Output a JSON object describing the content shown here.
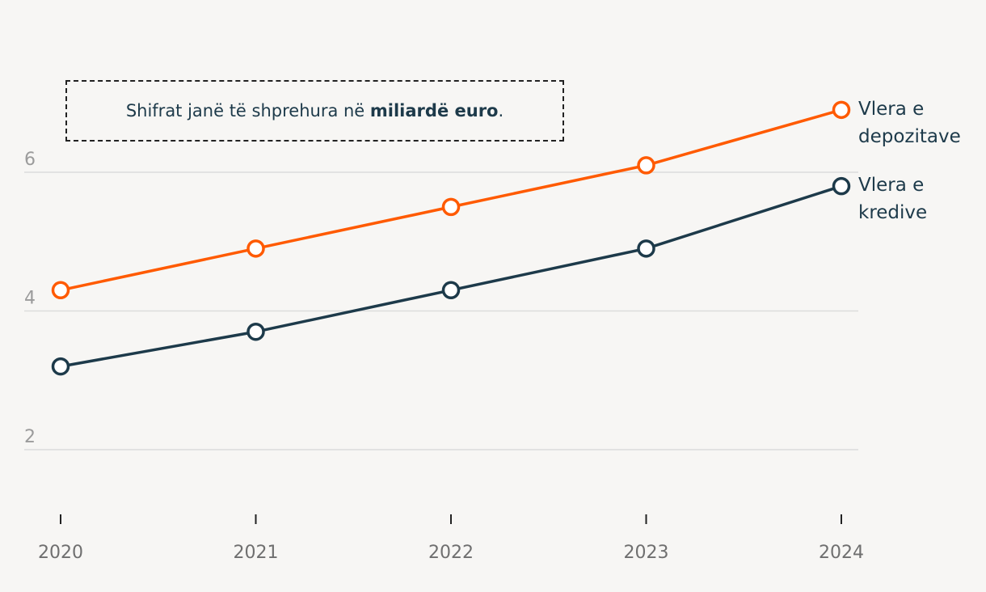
{
  "note": {
    "text_before": "Shifrat janë të shprehura në ",
    "text_bold": "miliardë euro",
    "text_after": "."
  },
  "colors": {
    "background": "#f7f6f4",
    "depozitave": "#ff5a00",
    "kredive": "#1d3a4a",
    "grid": "#dcdcdc",
    "tick_text": "#9b9b9b",
    "axis_text": "#6f6f6f"
  },
  "chart_data": {
    "type": "line",
    "x": [
      "2020",
      "2021",
      "2022",
      "2023",
      "2024"
    ],
    "ylim": [
      1,
      7.2
    ],
    "y_ticks": [
      "2",
      "4",
      "6"
    ],
    "grid": true,
    "series": [
      {
        "name": "Vlera e\ndepozitave",
        "key": "depozitave",
        "values": [
          4.3,
          4.9,
          5.5,
          6.1,
          6.9
        ]
      },
      {
        "name": "Vlera e\nkredive",
        "key": "kredive",
        "values": [
          3.2,
          3.7,
          4.3,
          4.9,
          5.8
        ]
      }
    ]
  }
}
